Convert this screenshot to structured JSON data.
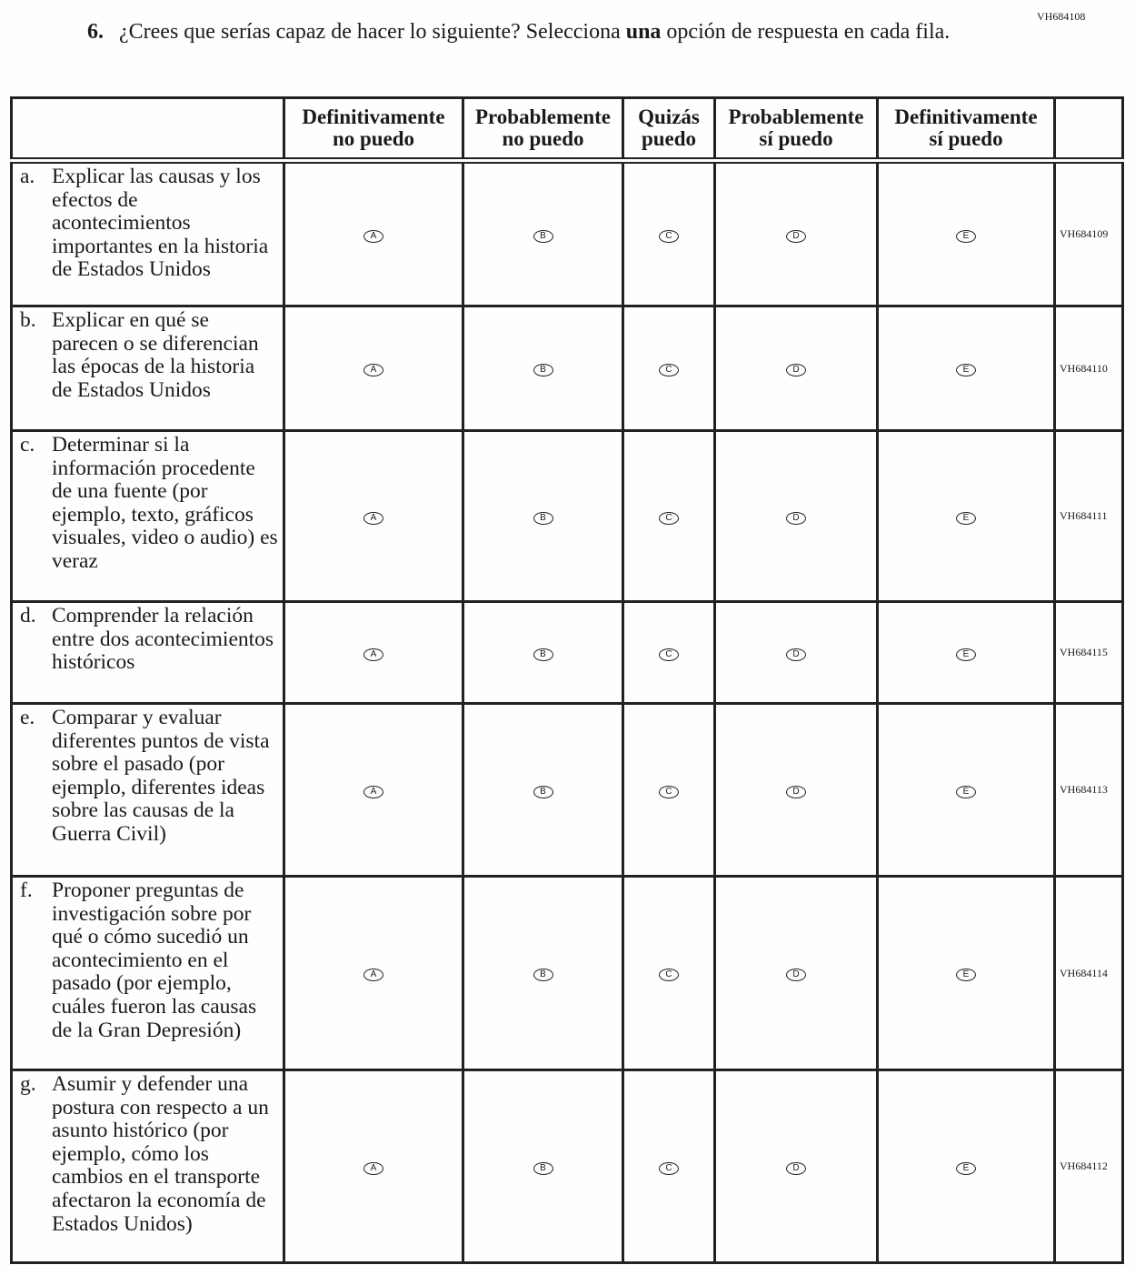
{
  "item_code": "VH684108",
  "question": {
    "number": "6.",
    "text_before": "¿Crees que serías capaz de hacer lo siguiente? Selecciona ",
    "text_bold": "una",
    "text_after": " opción de respuesta en cada fila."
  },
  "columns": [
    {
      "line1": "Definitivamente",
      "line2": "no puedo"
    },
    {
      "line1": "Probablemente",
      "line2": "no puedo"
    },
    {
      "line1": "Quizás",
      "line2": "puedo"
    },
    {
      "line1": "Probablemente",
      "line2": "sí puedo"
    },
    {
      "line1": "Definitivamente",
      "line2": "sí puedo"
    }
  ],
  "options": [
    "A",
    "B",
    "C",
    "D",
    "E"
  ],
  "rows": [
    {
      "letter": "a.",
      "text": "Explicar las causas y los efectos de acontecimientos importantes en la historia de Estados Unidos",
      "code": "VH684109"
    },
    {
      "letter": "b.",
      "text": "Explicar en qué se parecen o se diferencian las épocas de la historia de Estados Unidos",
      "code": "VH684110"
    },
    {
      "letter": "c.",
      "text": "Determinar si la información procedente de una fuente (por ejemplo, texto, gráficos visuales, video o audio) es veraz",
      "code": "VH684111"
    },
    {
      "letter": "d.",
      "text": "Comprender la relación entre dos acontecimientos históricos",
      "code": "VH684115"
    },
    {
      "letter": "e.",
      "text": "Comparar y evaluar diferentes puntos de vista sobre el pasado (por ejemplo, diferentes ideas sobre las causas de la Guerra Civil)",
      "code": "VH684113"
    },
    {
      "letter": "f.",
      "text": "Proponer preguntas de investigación sobre por qué o cómo sucedió un acontecimiento en el pasado (por ejemplo, cuáles fueron las causas de la Gran Depresión)",
      "code": "VH684114"
    },
    {
      "letter": "g.",
      "text": "Asumir y defender una postura con respecto a un asunto histórico (por ejemplo, cómo los cambios en el transporte afectaron la economía de Estados Unidos)",
      "code": "VH684112"
    }
  ]
}
